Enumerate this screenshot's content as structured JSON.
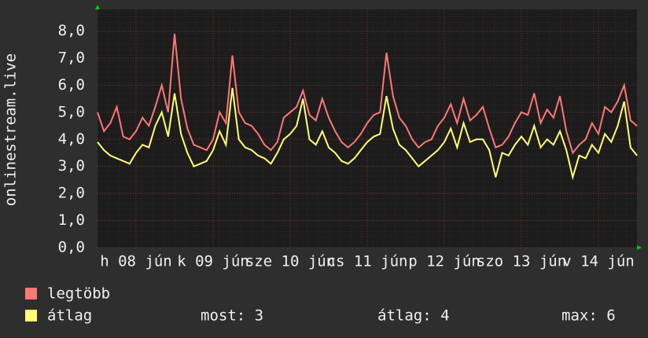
{
  "chart_data": {
    "type": "line",
    "y_label": "onlinestream.live",
    "x": [
      0,
      2,
      4,
      6,
      8,
      10,
      12,
      14,
      16,
      18,
      20,
      22,
      24,
      26,
      28,
      30,
      32,
      34,
      36,
      38,
      40,
      42,
      44,
      46,
      48,
      50,
      52,
      54,
      56,
      58,
      60,
      62,
      64,
      66,
      68,
      70,
      72,
      74,
      76,
      78,
      80,
      82,
      84,
      86,
      88,
      90,
      92,
      94,
      96,
      98,
      100,
      102,
      104,
      106,
      108,
      110,
      112,
      114,
      116,
      118,
      120,
      122,
      124,
      126,
      128,
      130,
      132,
      134,
      136,
      138,
      140,
      142,
      144,
      146,
      148,
      150,
      152,
      154,
      156,
      158,
      160,
      162,
      164,
      166,
      168
    ],
    "series": [
      {
        "name": "legtöbb",
        "color": "#ff7777",
        "values": [
          5.0,
          4.3,
          4.6,
          5.2,
          4.1,
          4.0,
          4.3,
          4.8,
          4.5,
          5.2,
          6.0,
          5.0,
          7.9,
          5.5,
          4.4,
          3.8,
          3.7,
          3.6,
          4.0,
          5.0,
          4.6,
          7.1,
          5.0,
          4.6,
          4.5,
          4.2,
          3.8,
          3.6,
          3.9,
          4.8,
          5.0,
          5.2,
          5.8,
          4.9,
          4.7,
          5.5,
          4.8,
          4.3,
          3.9,
          3.7,
          3.9,
          4.2,
          4.6,
          4.9,
          5.0,
          7.2,
          5.6,
          4.8,
          4.5,
          4.0,
          3.7,
          3.9,
          4.0,
          4.5,
          4.8,
          5.3,
          4.6,
          5.5,
          4.7,
          4.9,
          5.2,
          4.4,
          3.7,
          3.8,
          4.1,
          4.6,
          5.0,
          4.9,
          5.7,
          4.6,
          5.1,
          4.8,
          5.6,
          4.3,
          3.5,
          3.8,
          4.0,
          4.6,
          4.2,
          5.2,
          5.0,
          5.4,
          6.0,
          4.7,
          4.5
        ]
      },
      {
        "name": "átlag",
        "color": "#ffff77",
        "values": [
          3.9,
          3.6,
          3.4,
          3.3,
          3.2,
          3.1,
          3.5,
          3.8,
          3.7,
          4.5,
          5.0,
          4.1,
          5.7,
          4.2,
          3.5,
          3.0,
          3.1,
          3.2,
          3.6,
          4.3,
          3.8,
          5.9,
          4.0,
          3.7,
          3.6,
          3.4,
          3.3,
          3.1,
          3.5,
          4.0,
          4.2,
          4.5,
          5.5,
          4.0,
          3.8,
          4.3,
          3.7,
          3.5,
          3.2,
          3.1,
          3.3,
          3.6,
          3.9,
          4.1,
          4.2,
          5.6,
          4.4,
          3.8,
          3.6,
          3.3,
          3.0,
          3.2,
          3.4,
          3.6,
          3.9,
          4.4,
          3.7,
          4.6,
          3.9,
          4.0,
          4.0,
          3.6,
          2.6,
          3.5,
          3.4,
          3.8,
          4.1,
          3.8,
          4.5,
          3.7,
          4.0,
          3.8,
          4.3,
          3.6,
          2.6,
          3.4,
          3.3,
          3.8,
          3.5,
          4.2,
          3.9,
          4.5,
          5.4,
          3.7,
          3.4
        ]
      }
    ],
    "legend_stats": [
      "most: 3",
      "átlag: 4",
      "max: 6"
    ],
    "xlim": [
      0,
      168
    ],
    "xticks": [
      {
        "value": 12,
        "label": "h 08 jún"
      },
      {
        "value": 36,
        "label": "k 09 jún"
      },
      {
        "value": 60,
        "label": "sze 10 jún"
      },
      {
        "value": 84,
        "label": "cs 11 jún"
      },
      {
        "value": 108,
        "label": "p 12 jún"
      },
      {
        "value": 132,
        "label": "szo 13 jún"
      },
      {
        "value": 156,
        "label": "v 14 jún"
      }
    ],
    "ylim": [
      0,
      8.8
    ],
    "yticks": [
      {
        "value": 0,
        "label": "0,0"
      },
      {
        "value": 1,
        "label": "1,0"
      },
      {
        "value": 2,
        "label": "2,0"
      },
      {
        "value": 3,
        "label": "3,0"
      },
      {
        "value": 4,
        "label": "4,0"
      },
      {
        "value": 5,
        "label": "5,0"
      },
      {
        "value": 6,
        "label": "6,0"
      },
      {
        "value": 7,
        "label": "7,0"
      },
      {
        "value": 8,
        "label": "8,0"
      }
    ],
    "grid": true
  }
}
